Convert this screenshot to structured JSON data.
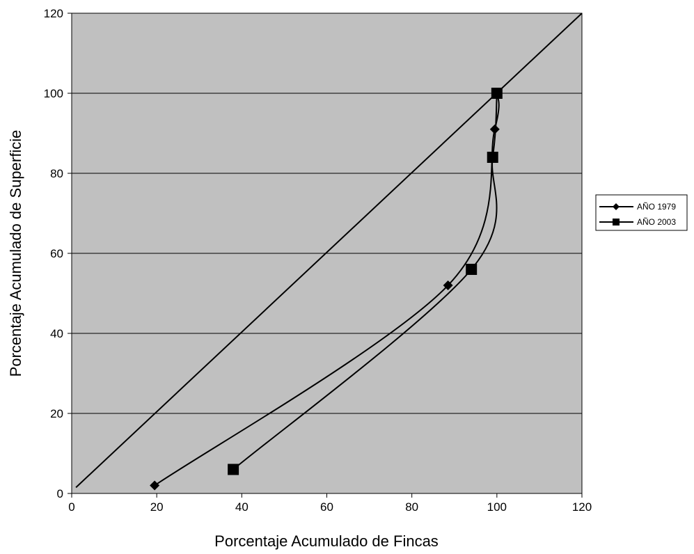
{
  "chart_data": {
    "type": "line",
    "title": "",
    "xlabel": "Porcentaje Acumulado de Fincas",
    "ylabel": "Porcentaje Acumulado de Superficie",
    "xlim": [
      0,
      120
    ],
    "ylim": [
      0,
      120
    ],
    "xticks": [
      "0",
      "20",
      "40",
      "60",
      "80",
      "100",
      "120"
    ],
    "yticks": [
      "0",
      "20",
      "40",
      "60",
      "80",
      "100",
      "120"
    ],
    "grid": "horizontal",
    "legend_position": "right",
    "plot_background": "#c0c0c0",
    "reference_line": {
      "x": [
        1,
        120
      ],
      "y": [
        1.5,
        120
      ]
    },
    "series": [
      {
        "name": "AÑO 1979",
        "marker": "diamond",
        "color": "#000000",
        "x": [
          19.5,
          88.5,
          99.5,
          100
        ],
        "y": [
          2,
          52,
          91,
          100
        ]
      },
      {
        "name": "AÑO 2003",
        "marker": "square",
        "color": "#000000",
        "x": [
          38,
          94,
          99,
          100
        ],
        "y": [
          6,
          56,
          84,
          100
        ]
      }
    ]
  }
}
